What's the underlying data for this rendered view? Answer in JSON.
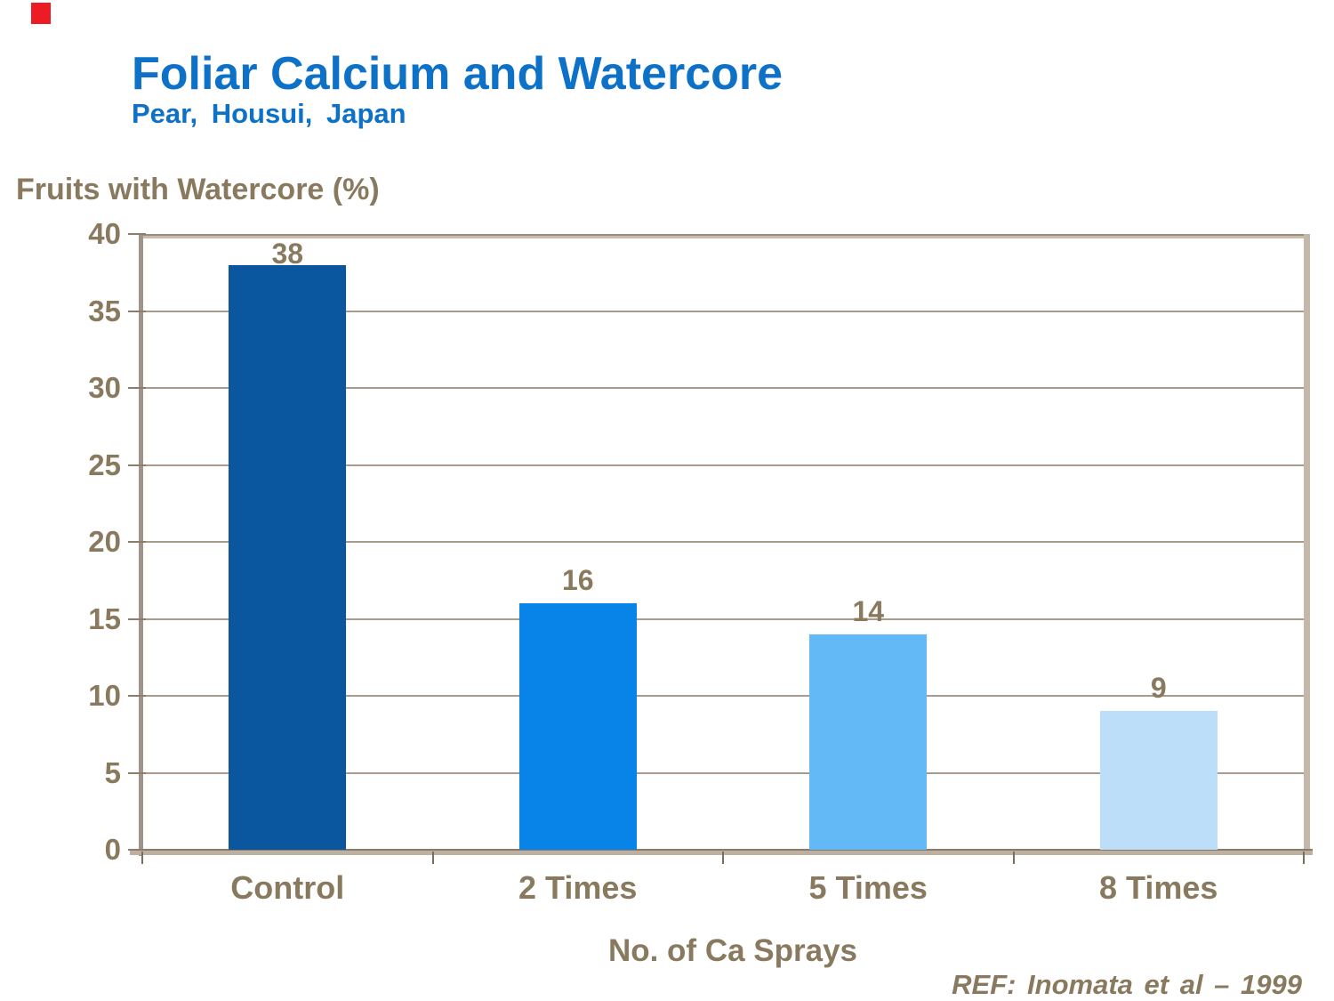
{
  "branding": {
    "corner_mark_color": "#ED1C24"
  },
  "header": {
    "title": "Foliar Calcium and Watercore",
    "subtitle": "Pear, Housui, Japan",
    "title_color": "#0E71C8"
  },
  "footer": {
    "reference": "REF: Inomata et al – 1999"
  },
  "chart_data": {
    "type": "bar",
    "title": "Foliar Calcium and Watercore",
    "subtitle": "Pear, Housui, Japan",
    "categories": [
      "Control",
      "2 Times",
      "5 Times",
      "8 Times"
    ],
    "values": [
      38,
      16,
      14,
      9
    ],
    "data_labels": [
      "38",
      "16",
      "14",
      "9"
    ],
    "bar_colors": [
      "#0A57A0",
      "#0884E8",
      "#63B9F5",
      "#BCDEF8"
    ],
    "xlabel": "No. of Ca Sprays",
    "ylabel": "Fruits with Watercore (%)",
    "ylim": [
      0,
      40
    ],
    "yticks": [
      0,
      5,
      10,
      15,
      20,
      25,
      30,
      35,
      40
    ],
    "grid": true,
    "legend_position": "none",
    "text_color": "#897A5F",
    "gridline_color": "#A89B8B",
    "frame_color": "#C4B8AA",
    "reference": "REF: Inomata et al – 1999"
  }
}
